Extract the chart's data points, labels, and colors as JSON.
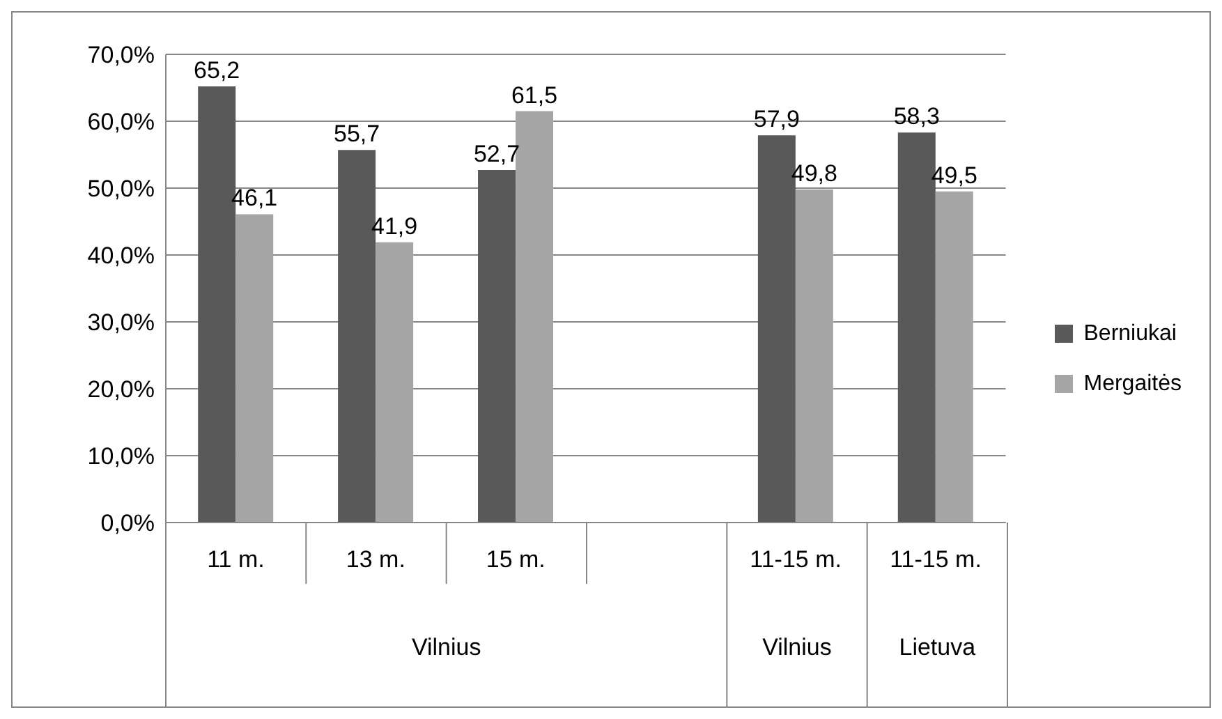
{
  "chart_data": {
    "type": "bar",
    "categories": [
      "11 m.",
      "13 m.",
      "15 m.",
      null,
      "11-15 m.",
      "11-15 m."
    ],
    "series": [
      {
        "name": "Berniukai",
        "color": "#595959",
        "values": [
          65.2,
          55.7,
          52.7,
          null,
          57.9,
          58.3
        ],
        "value_labels": [
          "65,2",
          "55,7",
          "52,7",
          null,
          "57,9",
          "58,3"
        ]
      },
      {
        "name": "Mergaitės",
        "color": "#a6a6a6",
        "values": [
          46.1,
          41.9,
          61.5,
          null,
          49.8,
          49.5
        ],
        "value_labels": [
          "46,1",
          "41,9",
          "61,5",
          null,
          "49,8",
          "49,5"
        ]
      }
    ],
    "ylim": [
      0,
      70
    ],
    "yticks": [
      {
        "value": 0,
        "label": "0,0%"
      },
      {
        "value": 10,
        "label": "10,0%"
      },
      {
        "value": 20,
        "label": "20,0%"
      },
      {
        "value": 30,
        "label": "30,0%"
      },
      {
        "value": 40,
        "label": "40,0%"
      },
      {
        "value": 50,
        "label": "50,0%"
      },
      {
        "value": 60,
        "label": "60,0%"
      },
      {
        "value": 70,
        "label": "70,0%"
      }
    ],
    "grid": "y",
    "legend": "right",
    "annotations": [
      "Vilnius",
      "Vilnius",
      "Lietuva"
    ]
  }
}
